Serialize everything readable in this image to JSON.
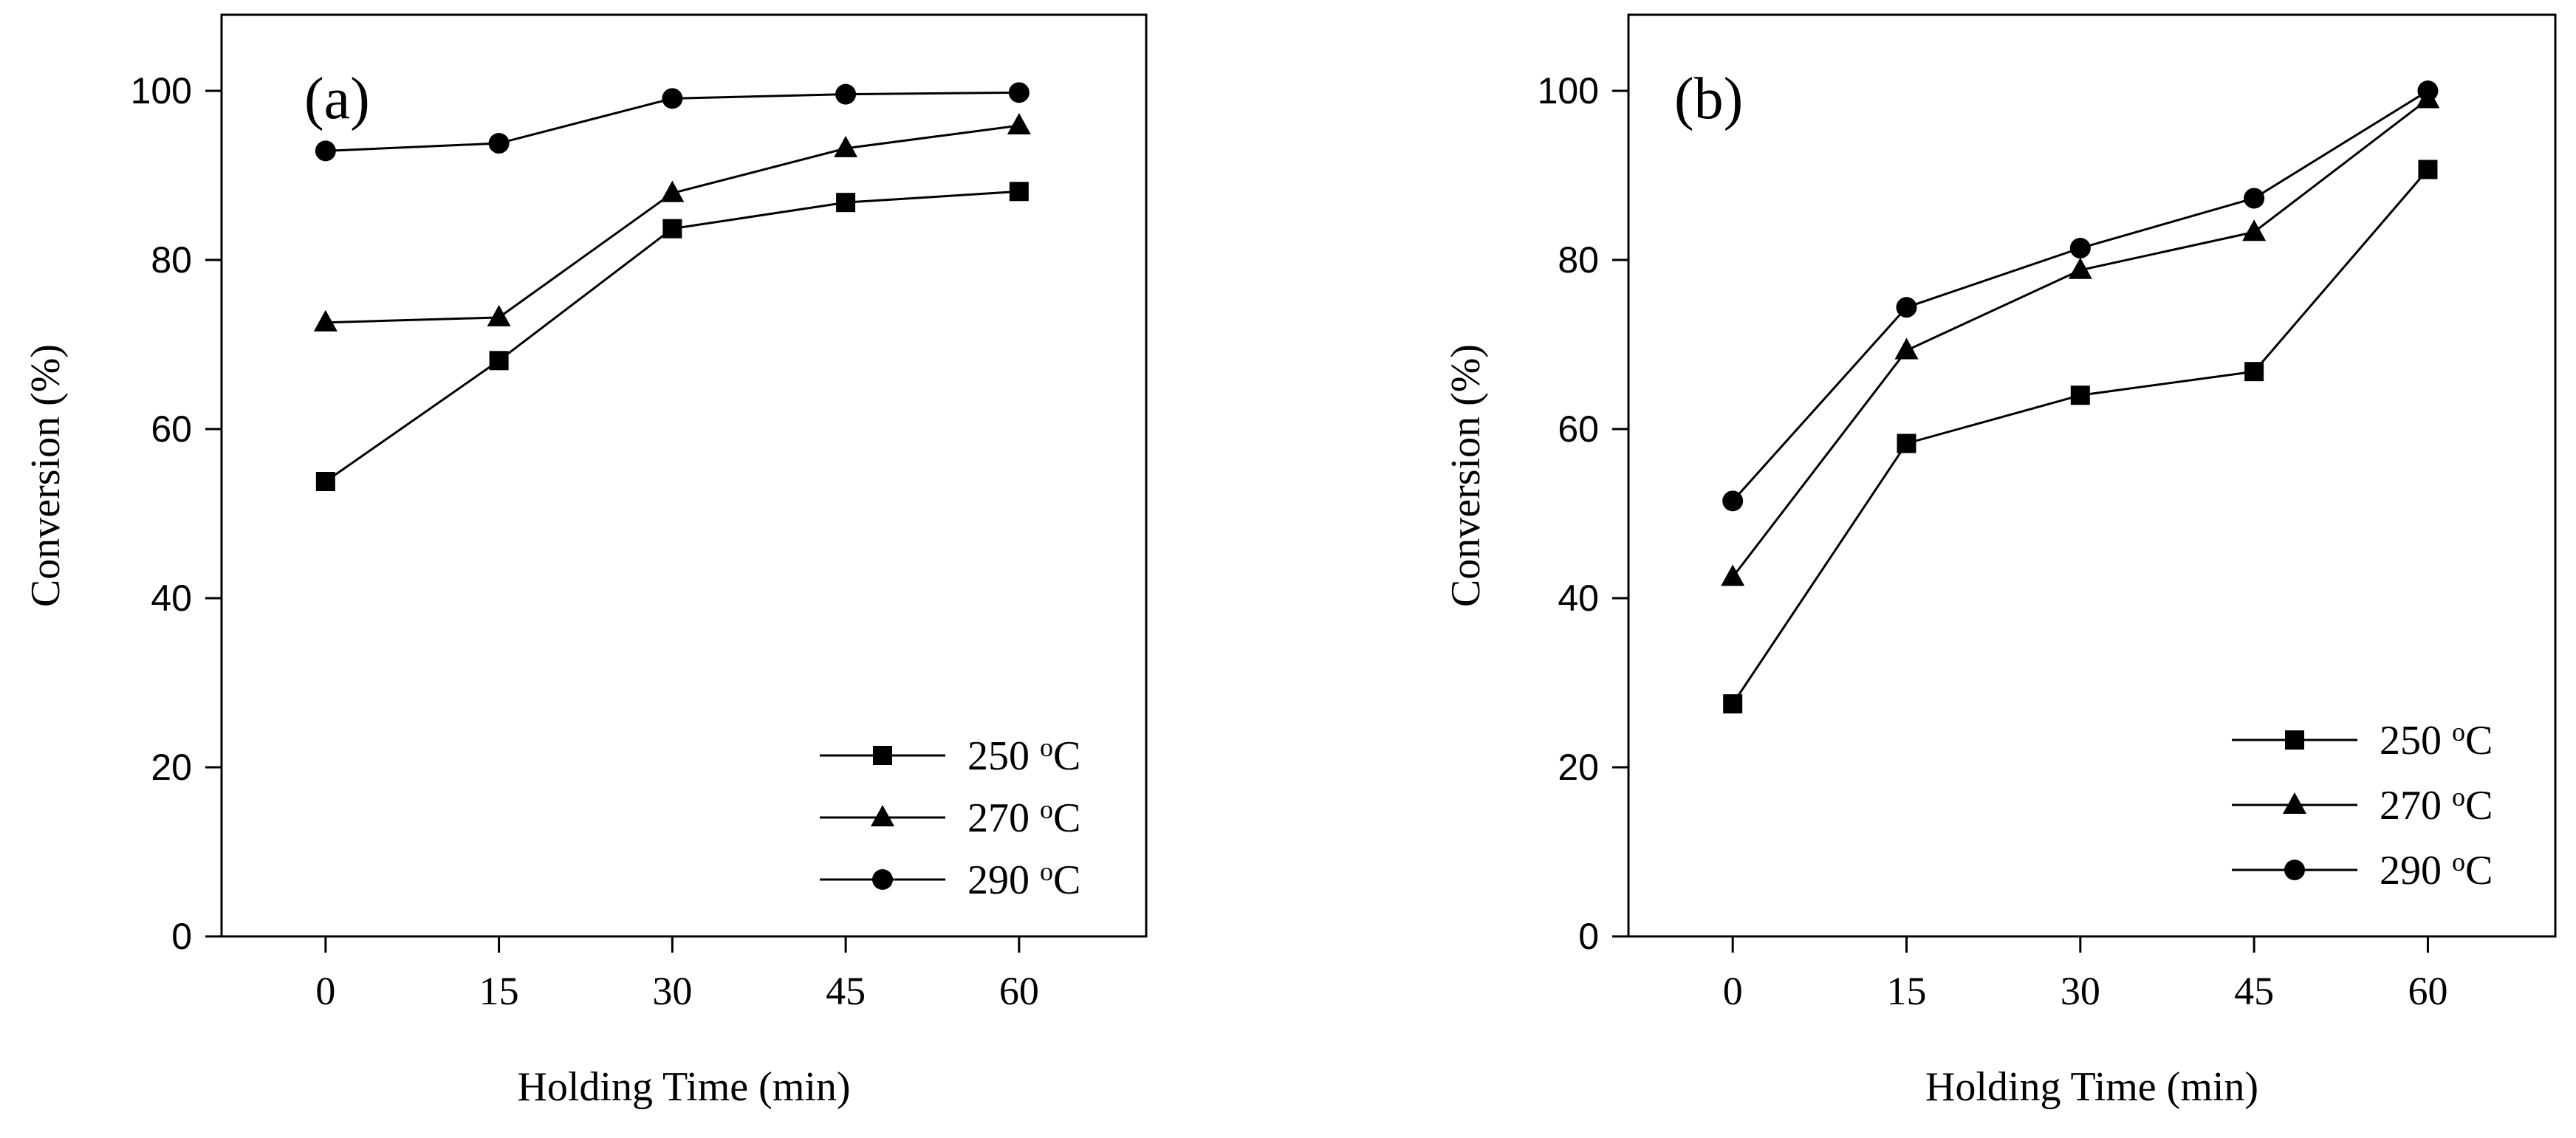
{
  "chart_data": [
    {
      "type": "line",
      "panel_label": "(a)",
      "xlabel": "Holding Time (min)",
      "ylabel": "Conversion (%)",
      "categories": [
        "0",
        "15",
        "30",
        "45",
        "60"
      ],
      "x": [
        0,
        15,
        30,
        45,
        60
      ],
      "xlim": [
        -9,
        71
      ],
      "ylim": [
        0,
        109
      ],
      "yticks": [
        "0",
        "20",
        "40",
        "60",
        "80",
        "100"
      ],
      "ytick_values": [
        0,
        20,
        40,
        60,
        80,
        100
      ],
      "legend_position": "bottom-right",
      "series": [
        {
          "name": "250",
          "unit_sup": "o",
          "unit": "C",
          "marker": "square",
          "values": [
            53.8,
            68.1,
            83.7,
            86.8,
            88.1
          ]
        },
        {
          "name": "270",
          "unit_sup": "o",
          "unit": "C",
          "marker": "triangle",
          "values": [
            72.6,
            73.2,
            87.9,
            93.2,
            95.9
          ]
        },
        {
          "name": "290",
          "unit_sup": "o",
          "unit": "C",
          "marker": "circle",
          "values": [
            92.9,
            93.8,
            99.1,
            99.6,
            99.8
          ]
        }
      ]
    },
    {
      "type": "line",
      "panel_label": "(b)",
      "xlabel": "Holding Time (min)",
      "ylabel": "Conversion (%)",
      "categories": [
        "0",
        "15",
        "30",
        "45",
        "60"
      ],
      "x": [
        0,
        15,
        30,
        45,
        60
      ],
      "xlim": [
        -9,
        71
      ],
      "ylim": [
        0,
        109
      ],
      "yticks": [
        "0",
        "20",
        "40",
        "60",
        "80",
        "100"
      ],
      "ytick_values": [
        0,
        20,
        40,
        60,
        80,
        100
      ],
      "legend_position": "bottom-right",
      "series": [
        {
          "name": "250",
          "unit_sup": "o",
          "unit": "C",
          "marker": "square",
          "values": [
            27.5,
            58.3,
            64.0,
            66.8,
            90.7
          ]
        },
        {
          "name": "270",
          "unit_sup": "o",
          "unit": "C",
          "marker": "triangle",
          "values": [
            42.5,
            69.3,
            78.8,
            83.3,
            99.0
          ]
        },
        {
          "name": "290",
          "unit_sup": "o",
          "unit": "C",
          "marker": "circle",
          "values": [
            51.5,
            74.4,
            81.4,
            87.3,
            100.0
          ]
        }
      ]
    }
  ]
}
